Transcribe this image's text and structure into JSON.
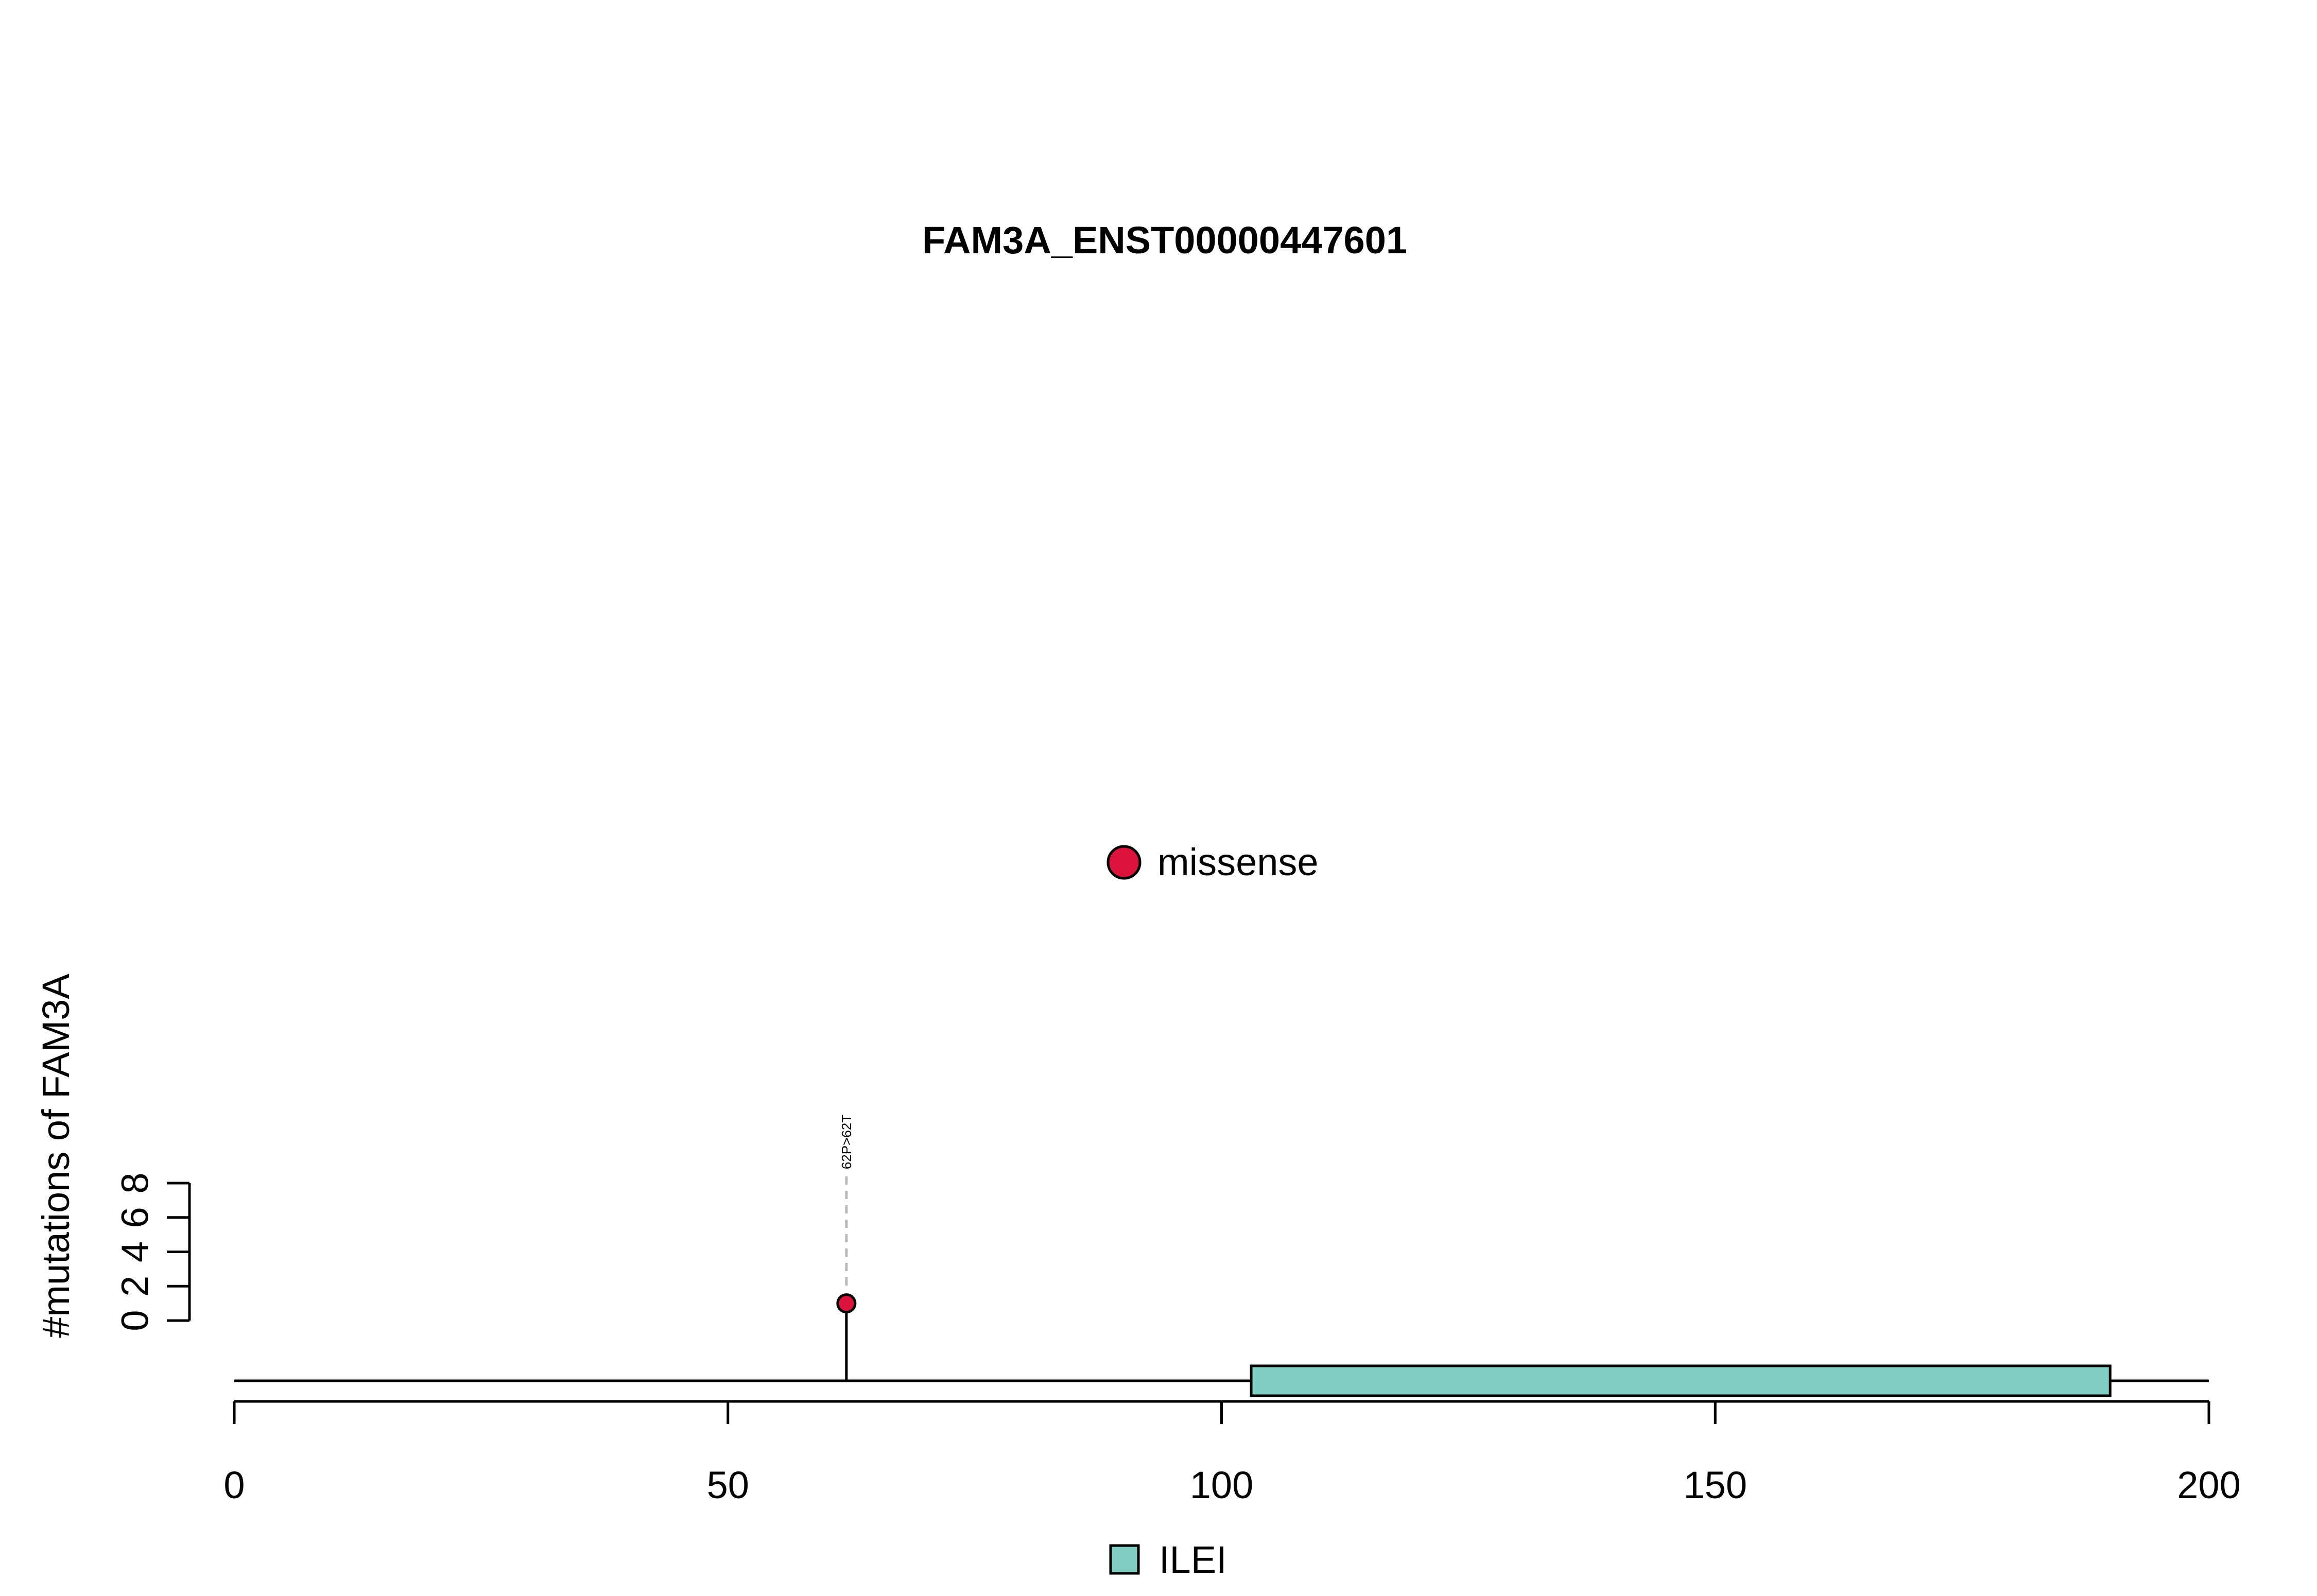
{
  "chart_data": {
    "type": "lollipop",
    "title": "FAM3A_ENST00000447601",
    "ylabel": "#mutations of FAM3A",
    "x_range": [
      0,
      200
    ],
    "x_ticks": [
      0,
      50,
      100,
      150,
      200
    ],
    "y_range": [
      0,
      8
    ],
    "y_ticks": [
      0,
      2,
      4,
      6,
      8
    ],
    "mutations": [
      {
        "position": 62,
        "count": 1,
        "label": "62P>62T",
        "type": "missense"
      }
    ],
    "domains": [
      {
        "name": "ILEI",
        "start": 103,
        "end": 190,
        "color": "#80CDC1"
      }
    ],
    "mutation_legend": [
      {
        "label": "missense",
        "color": "#DC143C"
      }
    ],
    "domain_legend": [
      {
        "label": "ILEI",
        "color": "#80CDC1"
      }
    ]
  }
}
